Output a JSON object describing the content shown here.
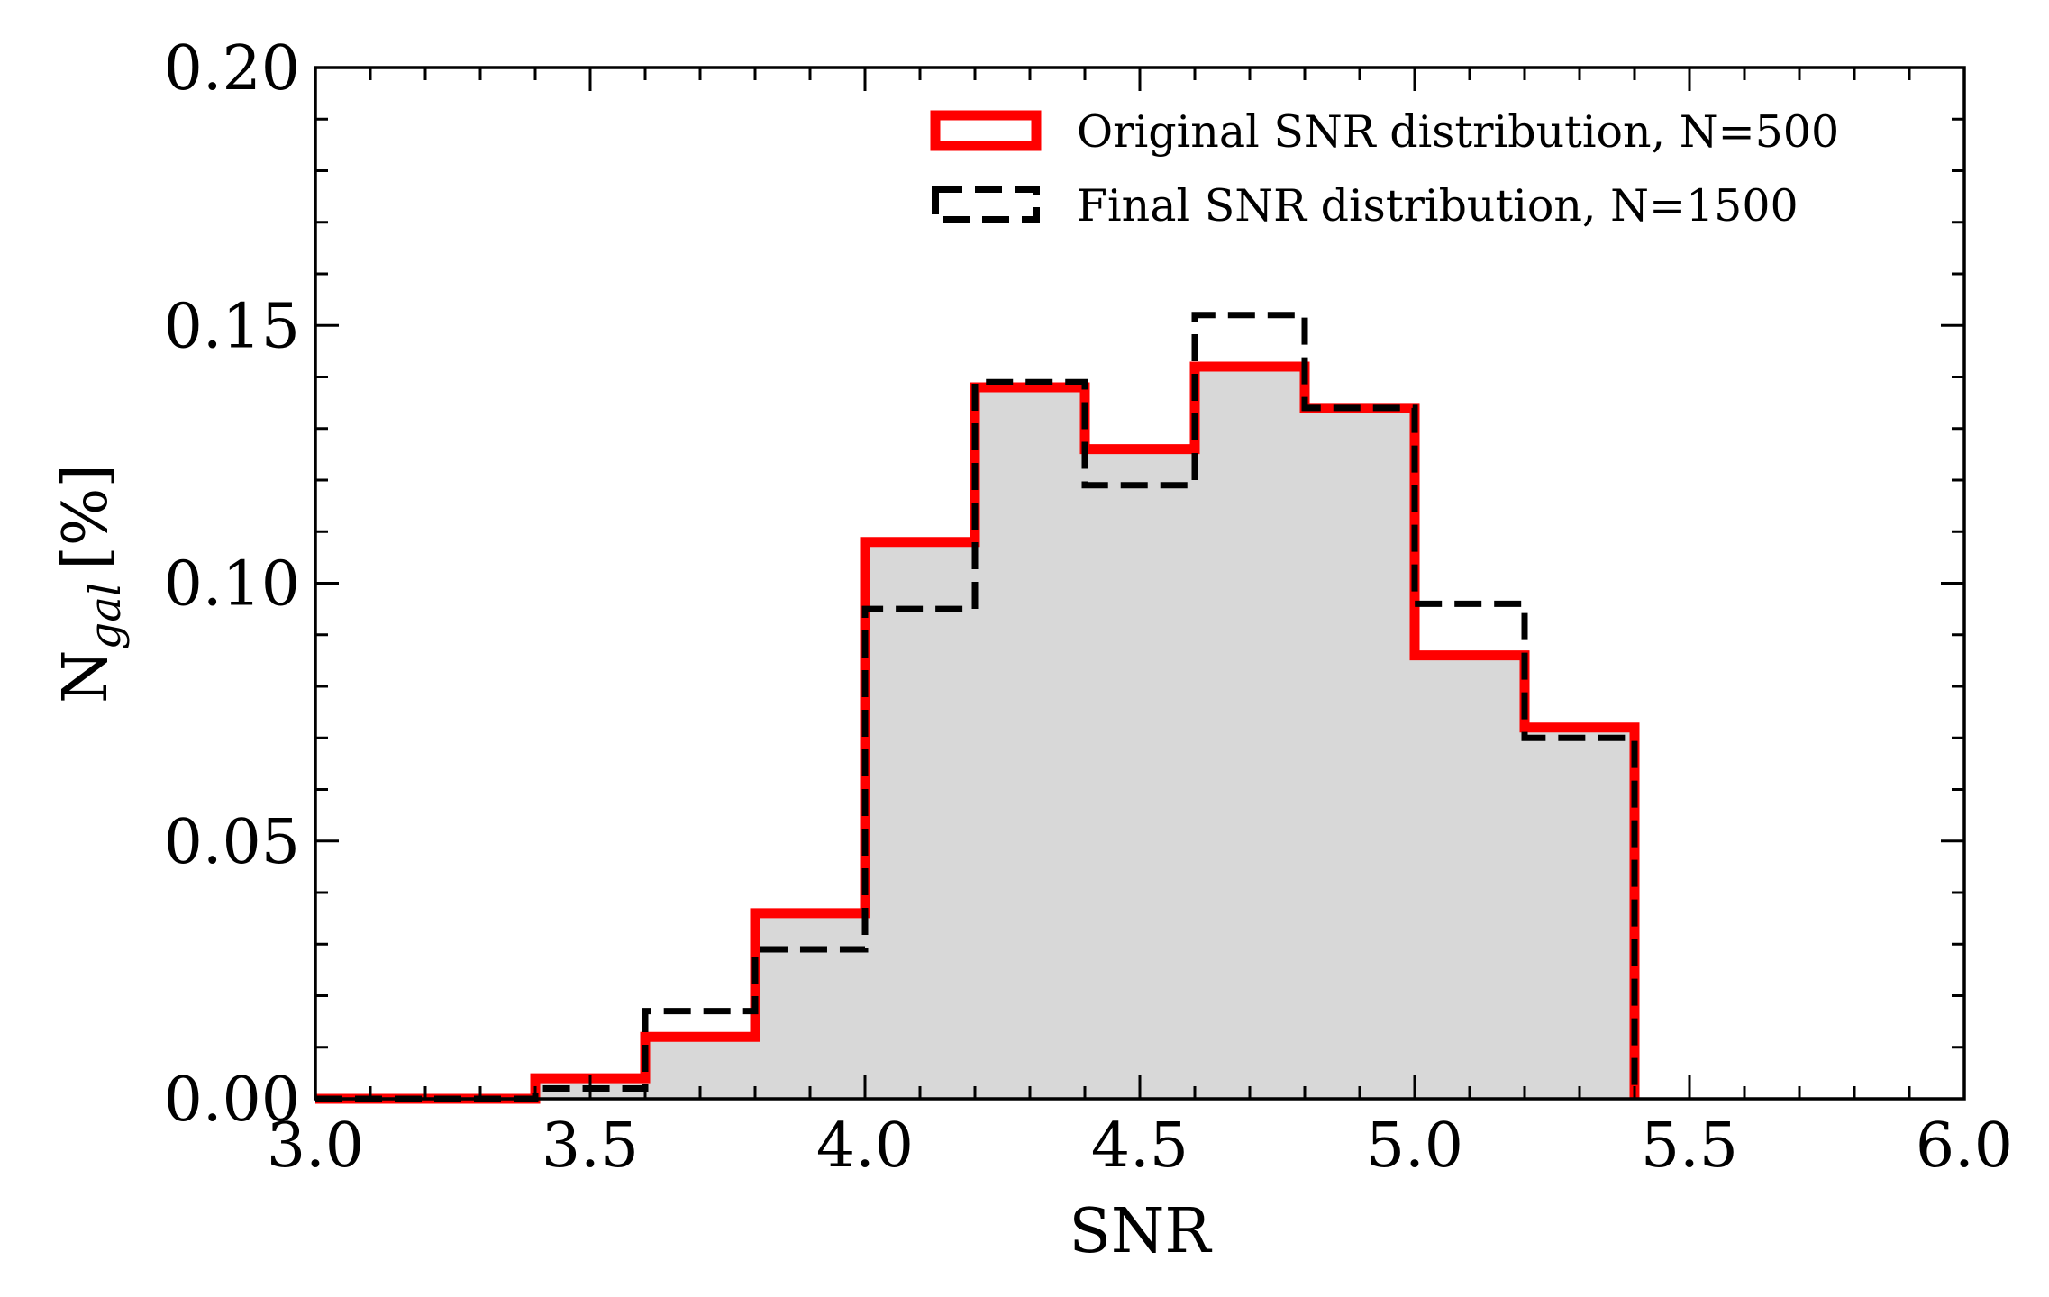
{
  "chart_data": {
    "type": "bar",
    "xlabel": "SNR",
    "ylabel": {
      "main": "N",
      "sub": "gal",
      "unit": "[%]"
    },
    "xlim": [
      3.0,
      6.0
    ],
    "ylim": [
      0.0,
      0.2
    ],
    "xticks": [
      "3.0",
      "3.5",
      "4.0",
      "4.5",
      "5.0",
      "5.5",
      "6.0"
    ],
    "yticks": [
      "0.00",
      "0.05",
      "0.10",
      "0.15",
      "0.20"
    ],
    "grid": false,
    "legend_position": "top-right",
    "bin_edges": [
      3.0,
      3.2,
      3.4,
      3.6,
      3.8,
      4.0,
      4.2,
      4.4,
      4.6,
      4.8,
      5.0,
      5.2,
      5.4
    ],
    "series": [
      {
        "name": "Original SNR distribution, N=500",
        "style": "solid",
        "color": "#ff0000",
        "filled": true,
        "fill_color": "#d8d8d8",
        "values": [
          0.0,
          0.0,
          0.004,
          0.012,
          0.036,
          0.108,
          0.138,
          0.126,
          0.142,
          0.134,
          0.086,
          0.072
        ]
      },
      {
        "name": "Final SNR distribution, N=1500",
        "style": "dashed",
        "color": "#000000",
        "filled": false,
        "values": [
          0.0,
          0.0,
          0.002,
          0.017,
          0.029,
          0.095,
          0.139,
          0.119,
          0.152,
          0.134,
          0.096,
          0.07
        ]
      }
    ]
  }
}
